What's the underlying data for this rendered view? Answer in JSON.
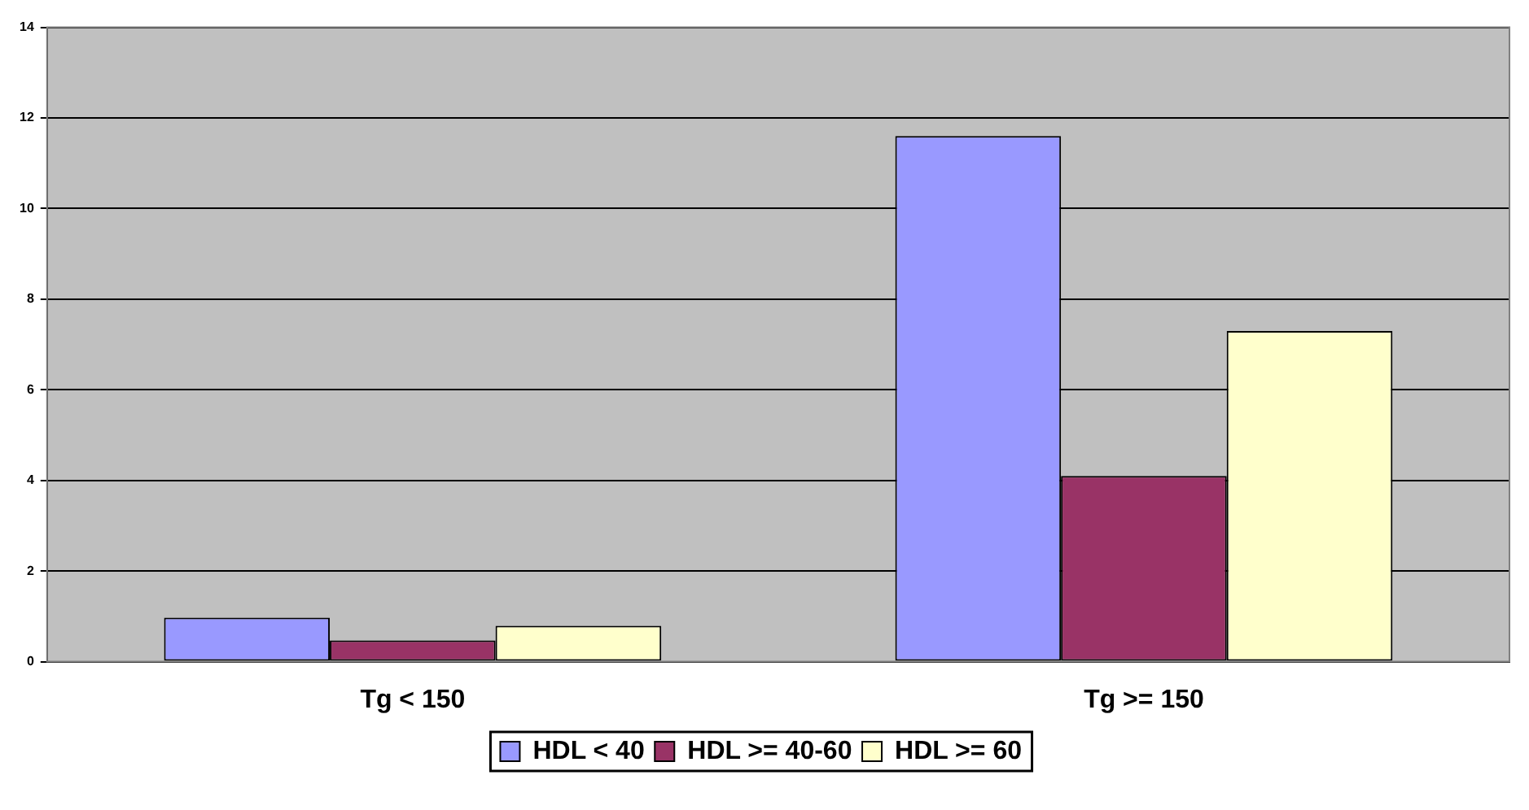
{
  "chart_data": {
    "type": "bar",
    "categories": [
      "Tg < 150",
      "Tg >= 150"
    ],
    "series": [
      {
        "name": "HDL < 40",
        "color": "#9999ff",
        "values": [
          0.97,
          11.6
        ]
      },
      {
        "name": "HDL >= 40-60",
        "color": "#993366",
        "values": [
          0.47,
          4.1
        ]
      },
      {
        "name": "HDL >= 60",
        "color": "#ffffcc",
        "values": [
          0.79,
          7.3
        ]
      }
    ],
    "ylim": [
      0,
      14
    ],
    "yticks": [
      0,
      2,
      4,
      6,
      8,
      10,
      12,
      14
    ],
    "grid": "y",
    "legend": "bottom"
  }
}
